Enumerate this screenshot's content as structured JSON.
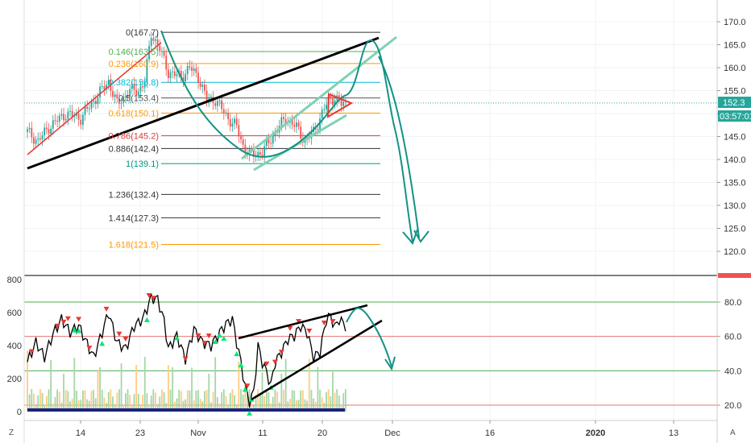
{
  "chart_data": [
    {
      "type": "candlestick",
      "title": "",
      "price_axis": {
        "ylim": [
          116,
          172
        ],
        "ticks": [
          "170.0",
          "165.0",
          "160.0",
          "155.0",
          "150.0",
          "145.0",
          "140.0",
          "135.0",
          "130.0",
          "125.0",
          "120.0"
        ],
        "tick_values": [
          170,
          165,
          160,
          155,
          150,
          145,
          140,
          135,
          130,
          125,
          120
        ]
      },
      "time_axis": {
        "labels": [
          {
            "text": "14",
            "bold": false
          },
          {
            "text": "23",
            "bold": false
          },
          {
            "text": "Nov",
            "bold": false
          },
          {
            "text": "11",
            "bold": false
          },
          {
            "text": "20",
            "bold": false
          },
          {
            "text": "Dec",
            "bold": false
          },
          {
            "text": "16",
            "bold": false
          },
          {
            "text": "2020",
            "bold": true
          },
          {
            "text": "13",
            "bold": false
          }
        ]
      },
      "last_price": {
        "value": 152.3,
        "label": "152.3",
        "countdown": "03:57:01",
        "color": "#26a69a"
      },
      "fibonacci": {
        "levels": [
          {
            "label": "0(167.7)",
            "price": 167.7,
            "color": "#333333"
          },
          {
            "label": "0.146(163.5)",
            "price": 163.5,
            "color": "#4caf50"
          },
          {
            "label": "0.236(160.9)",
            "price": 160.9,
            "color": "#ff9800"
          },
          {
            "label": "0.382(156.8)",
            "price": 156.8,
            "color": "#00bcd4"
          },
          {
            "label": "0.5(153.4)",
            "price": 153.4,
            "color": "#555555"
          },
          {
            "label": "0.618(150.1)",
            "price": 150.1,
            "color": "#ff9800"
          },
          {
            "label": "0.786(145.2)",
            "price": 145.2,
            "color": "#e53935"
          },
          {
            "label": "0.886(142.4)",
            "price": 142.4,
            "color": "#333333"
          },
          {
            "label": "1(139.1)",
            "price": 139.1,
            "color": "#009688"
          },
          {
            "label": "1.236(132.4)",
            "price": 132.4,
            "color": "#333333"
          },
          {
            "label": "1.414(127.3)",
            "price": 127.3,
            "color": "#333333"
          },
          {
            "label": "1.618(121.5)",
            "price": 121.5,
            "color": "#ff9800"
          }
        ]
      },
      "colors": {
        "up": "#26a69a",
        "down": "#ef5350",
        "trendline": "#000000",
        "projection": "#139285",
        "channel": "#7fd1b2"
      }
    },
    {
      "type": "line",
      "title": "",
      "left_axis": {
        "ticks": [
          "800",
          "600",
          "400",
          "200",
          "0"
        ],
        "tick_values": [
          800,
          600,
          400,
          200,
          0
        ]
      },
      "right_axis": {
        "ticks": [
          "80.0",
          "60.0",
          "40.0",
          "20.0"
        ],
        "tick_values": [
          80,
          60,
          40,
          20
        ],
        "hlines": [
          {
            "value": 80,
            "color": "#4caf50"
          },
          {
            "value": 60,
            "color": "#e57373"
          },
          {
            "value": 40,
            "color": "#4caf50"
          },
          {
            "value": 20,
            "color": "#e57373"
          }
        ]
      },
      "colors": {
        "line": "#000000",
        "peak_marker": "#e53935",
        "trough_marker": "#00e676",
        "volume_up": "#a5d6a7",
        "volume_down": "#ffcc80"
      }
    }
  ],
  "corner_left": "Z",
  "corner_right": "A"
}
